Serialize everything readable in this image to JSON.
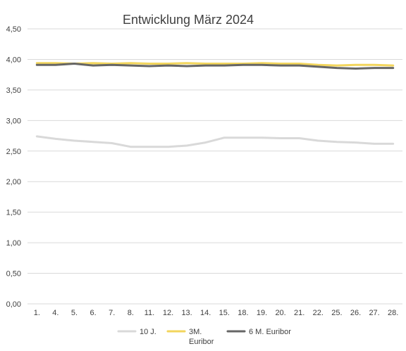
{
  "chart_data": {
    "type": "line",
    "title": "Entwicklung März 2024",
    "xlabel": "",
    "ylabel": "",
    "x": [
      "1.",
      "4.",
      "5.",
      "6.",
      "7.",
      "8.",
      "11.",
      "12.",
      "13.",
      "14.",
      "15.",
      "18.",
      "19.",
      "20.",
      "21.",
      "22.",
      "25.",
      "26.",
      "27.",
      "28."
    ],
    "ylim": [
      0,
      4.5
    ],
    "yticks": [
      "0,00",
      "0,50",
      "1,00",
      "1,50",
      "2,00",
      "2,50",
      "3,00",
      "3,50",
      "4,00",
      "4,50"
    ],
    "grid": true,
    "legend_position": "bottom",
    "series": [
      {
        "name": "10 J.",
        "color": "#d9d9d9",
        "values": [
          2.74,
          2.7,
          2.67,
          2.65,
          2.63,
          2.57,
          2.57,
          2.57,
          2.59,
          2.64,
          2.72,
          2.72,
          2.72,
          2.71,
          2.71,
          2.67,
          2.65,
          2.64,
          2.62,
          2.62
        ]
      },
      {
        "name": "3M. Euribor",
        "legend_lines": [
          "3M.",
          "Euribor"
        ],
        "color": "#f2d55c",
        "values": [
          3.94,
          3.94,
          3.93,
          3.94,
          3.93,
          3.94,
          3.93,
          3.93,
          3.94,
          3.93,
          3.93,
          3.93,
          3.94,
          3.93,
          3.93,
          3.91,
          3.9,
          3.91,
          3.91,
          3.9
        ]
      },
      {
        "name": "6 M. Euribor",
        "color": "#666666",
        "values": [
          3.91,
          3.91,
          3.93,
          3.9,
          3.91,
          3.9,
          3.89,
          3.9,
          3.89,
          3.9,
          3.9,
          3.91,
          3.91,
          3.9,
          3.9,
          3.88,
          3.86,
          3.85,
          3.86,
          3.86
        ]
      }
    ]
  }
}
